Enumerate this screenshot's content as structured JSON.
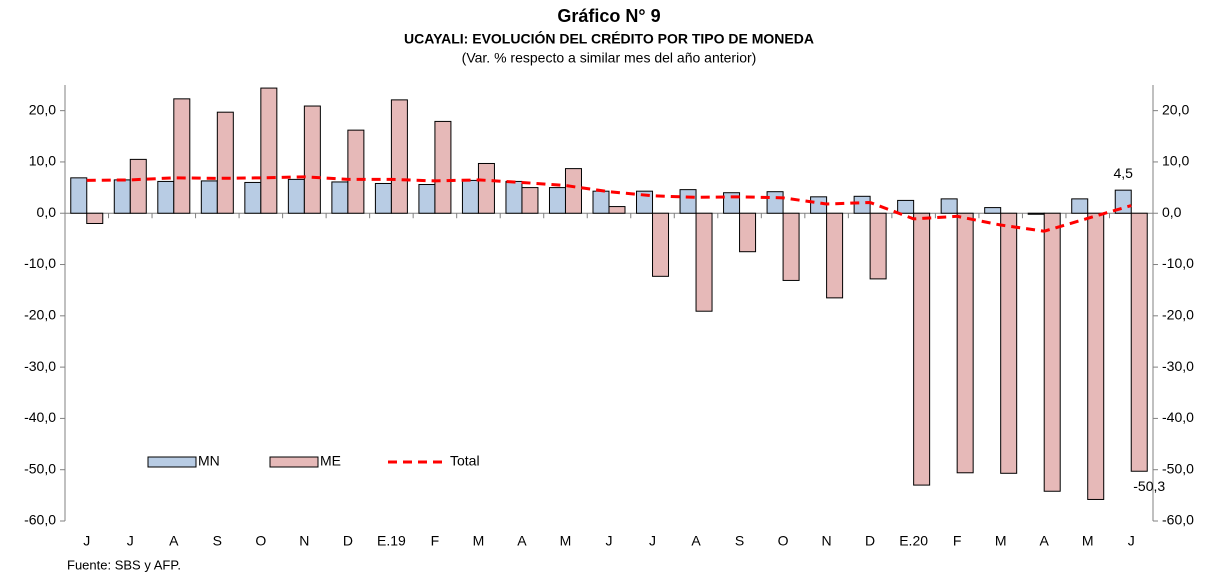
{
  "chart_data": {
    "type": "bar",
    "title": "Gráfico N° 9",
    "subtitle": "UCAYALI: EVOLUCIÓN DEL CRÉDITO POR TIPO DE MONEDA",
    "note": "(Var. % respecto a similar mes del año anterior)",
    "source": "Fuente: SBS y AFP.",
    "categories": [
      "J",
      "J",
      "A",
      "S",
      "O",
      "N",
      "D",
      "E.19",
      "F",
      "M",
      "A",
      "M",
      "J",
      "J",
      "A",
      "S",
      "O",
      "N",
      "D",
      "E.20",
      "F",
      "M",
      "A",
      "M",
      "J"
    ],
    "series": [
      {
        "name": "MN",
        "type": "bar",
        "color": "#b8cce4",
        "values": [
          6.9,
          6.5,
          6.2,
          6.3,
          6.0,
          6.6,
          6.1,
          5.8,
          5.6,
          6.4,
          6.2,
          5.0,
          4.3,
          4.3,
          4.6,
          4.0,
          4.2,
          3.2,
          3.3,
          2.5,
          2.8,
          1.1,
          -0.2,
          2.8,
          4.5
        ],
        "value_labels": [
          null,
          null,
          null,
          null,
          null,
          null,
          null,
          null,
          null,
          null,
          null,
          null,
          null,
          null,
          null,
          null,
          null,
          null,
          null,
          null,
          null,
          null,
          null,
          null,
          "4,5"
        ]
      },
      {
        "name": "ME",
        "type": "bar",
        "color": "#e6b9b8",
        "values": [
          -2.0,
          10.5,
          22.3,
          19.7,
          24.4,
          20.9,
          16.2,
          22.1,
          17.9,
          9.7,
          5.0,
          8.7,
          1.3,
          -12.3,
          -19.1,
          -7.5,
          -13.1,
          -16.5,
          -12.8,
          -53.0,
          -50.6,
          -50.7,
          -54.2,
          -55.8,
          -50.3
        ],
        "value_labels": [
          null,
          null,
          null,
          null,
          null,
          null,
          null,
          null,
          null,
          null,
          null,
          null,
          null,
          null,
          null,
          null,
          null,
          null,
          null,
          null,
          null,
          null,
          null,
          null,
          "-50,3"
        ]
      },
      {
        "name": "Total",
        "type": "line",
        "color": "#ff0000",
        "values": [
          6.4,
          6.5,
          6.9,
          6.8,
          6.9,
          7.1,
          6.6,
          6.6,
          6.3,
          6.5,
          6.0,
          5.4,
          4.2,
          3.4,
          3.1,
          3.2,
          3.0,
          1.8,
          2.1,
          -1.1,
          -0.6,
          -2.3,
          -3.5,
          -1.0,
          1.5
        ]
      }
    ],
    "ylim": [
      -60,
      25
    ],
    "yticks": [
      {
        "value": -60,
        "label": "-60,0"
      },
      {
        "value": -50,
        "label": "-50,0"
      },
      {
        "value": -40,
        "label": "-40,0"
      },
      {
        "value": -30,
        "label": "-30,0"
      },
      {
        "value": -20,
        "label": "-20,0"
      },
      {
        "value": -10,
        "label": "-10,0"
      },
      {
        "value": 0,
        "label": "0,0"
      },
      {
        "value": 10,
        "label": "10,0"
      },
      {
        "value": 20,
        "label": "20,0"
      }
    ],
    "y2lim": [
      -60,
      25
    ],
    "y2ticks": [
      {
        "value": -60,
        "label": "-60,0"
      },
      {
        "value": -50,
        "label": "-50,0"
      },
      {
        "value": -40,
        "label": "-40,0"
      },
      {
        "value": -30,
        "label": "-30,0"
      },
      {
        "value": -20,
        "label": "-20,0"
      },
      {
        "value": -10,
        "label": "-10,0"
      },
      {
        "value": 0,
        "label": "0,0"
      },
      {
        "value": 10,
        "label": "10,0"
      },
      {
        "value": 20,
        "label": "20,0"
      }
    ],
    "grid": false
  }
}
